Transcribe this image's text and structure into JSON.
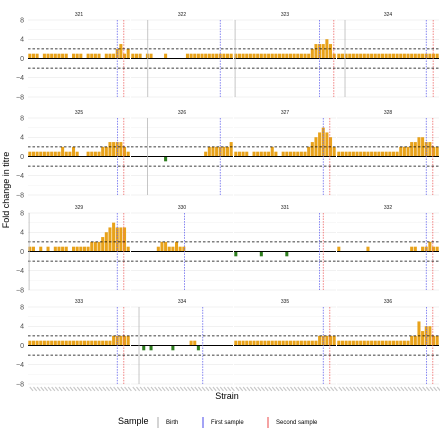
{
  "chart_data": {
    "type": "bar",
    "facet_layout": "4x4",
    "xlabel": "Strain",
    "ylabel": "Fold change in titre",
    "ylim": [
      -8,
      8
    ],
    "yticks": [
      -8,
      -4,
      0,
      4,
      8
    ],
    "threshold_lines": [
      2,
      -2
    ],
    "n_strains": 28,
    "colors": {
      "positive": "#E8A21A",
      "negative": "#2E7D1E"
    },
    "legend": {
      "title": "Sample",
      "placement": "bottom",
      "entries": [
        {
          "label": "Birth",
          "color": "#b8b8b8"
        },
        {
          "label": "First sample",
          "color": "#6666ee"
        },
        {
          "label": "Second sample",
          "color": "#ee6666"
        }
      ]
    },
    "panels": [
      {
        "id": "321",
        "birth": null,
        "first": 24.5,
        "second": 26.3,
        "values": [
          1,
          1,
          1,
          0,
          1,
          1,
          1,
          1,
          1,
          1,
          1,
          0,
          1,
          1,
          1,
          0,
          1,
          1,
          1,
          1,
          0,
          1,
          1,
          1,
          2,
          3,
          1,
          2
        ]
      },
      {
        "id": "322",
        "birth": 4.6,
        "first": 24.5,
        "second": null,
        "values": [
          1,
          1,
          1,
          0,
          1,
          1,
          0,
          0,
          0,
          1,
          0,
          0,
          0,
          0,
          0,
          1,
          1,
          1,
          1,
          1,
          1,
          1,
          1,
          1,
          1,
          1,
          1,
          1
        ]
      },
      {
        "id": "323",
        "birth": 0.3,
        "first": 23.5,
        "second": 27.4,
        "values": [
          1,
          1,
          1,
          1,
          1,
          1,
          1,
          1,
          1,
          1,
          1,
          1,
          1,
          1,
          1,
          1,
          1,
          1,
          1,
          1,
          1,
          2,
          3,
          3,
          3,
          4,
          3,
          1
        ]
      },
      {
        "id": "324",
        "birth": 2.2,
        "first": 24.5,
        "second": 26.4,
        "values": [
          1,
          1,
          1,
          1,
          1,
          1,
          1,
          1,
          1,
          1,
          1,
          1,
          1,
          1,
          1,
          1,
          1,
          1,
          1,
          1,
          1,
          1,
          1,
          1,
          1,
          1,
          1,
          1
        ]
      },
      {
        "id": "325",
        "birth": null,
        "first": 24.6,
        "second": 26.3,
        "values": [
          1,
          1,
          1,
          1,
          1,
          1,
          1,
          1,
          1,
          2,
          1,
          1,
          2,
          1,
          0,
          0,
          1,
          1,
          1,
          1,
          2,
          2,
          3,
          3,
          3,
          3,
          2,
          1
        ]
      },
      {
        "id": "326",
        "birth": 4.5,
        "first": 24.5,
        "second": null,
        "values": [
          0,
          0,
          0,
          0,
          0,
          0,
          0,
          0,
          0,
          -1,
          0,
          0,
          0,
          0,
          0,
          0,
          0,
          0,
          0,
          0,
          1,
          2,
          2,
          2,
          2,
          2,
          2,
          3
        ]
      },
      {
        "id": "327",
        "birth": null,
        "first": 24.5,
        "second": 26.3,
        "values": [
          1,
          1,
          1,
          1,
          0,
          1,
          1,
          1,
          1,
          1,
          2,
          1,
          0,
          1,
          1,
          1,
          1,
          1,
          1,
          1,
          2,
          3,
          4,
          5,
          6,
          5,
          4,
          2
        ]
      },
      {
        "id": "328",
        "birth": null,
        "first": 24.5,
        "second": 26.3,
        "values": [
          1,
          1,
          1,
          1,
          1,
          1,
          1,
          1,
          1,
          1,
          1,
          1,
          1,
          1,
          1,
          1,
          1,
          2,
          2,
          2,
          3,
          3,
          4,
          4,
          3,
          3,
          2,
          2
        ]
      },
      {
        "id": "329",
        "birth": 0.3,
        "first": 24.5,
        "second": 26.3,
        "values": [
          1,
          1,
          0,
          1,
          0,
          1,
          0,
          1,
          1,
          1,
          1,
          0,
          1,
          1,
          1,
          1,
          1,
          2,
          2,
          2,
          3,
          4,
          5,
          6,
          5,
          5,
          5,
          1
        ]
      },
      {
        "id": "330",
        "birth": null,
        "first": 14.7,
        "second": null,
        "values": [
          0,
          0,
          0,
          0,
          0,
          0,
          0,
          1,
          2,
          2,
          1,
          1,
          2,
          1,
          1,
          0,
          0,
          0,
          0,
          0,
          0,
          0,
          0,
          0,
          0,
          0,
          0,
          0
        ]
      },
      {
        "id": "331",
        "birth": null,
        "first": 23.5,
        "second": 24.5,
        "values": [
          -1,
          0,
          0,
          0,
          0,
          0,
          0,
          -1,
          0,
          0,
          0,
          0,
          0,
          0,
          -1,
          0,
          0,
          0,
          0,
          0,
          0,
          0,
          0,
          0,
          0,
          0,
          0,
          0
        ]
      },
      {
        "id": "332",
        "birth": null,
        "first": 24.5,
        "second": 26.3,
        "values": [
          1,
          0,
          0,
          0,
          0,
          0,
          0,
          0,
          1,
          0,
          0,
          0,
          0,
          0,
          0,
          0,
          0,
          0,
          0,
          0,
          1,
          1,
          0,
          1,
          1,
          2,
          1,
          1
        ]
      },
      {
        "id": "333",
        "birth": null,
        "first": 24.5,
        "second": 26.3,
        "values": [
          1,
          1,
          1,
          1,
          1,
          1,
          1,
          1,
          1,
          1,
          1,
          1,
          1,
          1,
          1,
          1,
          1,
          1,
          1,
          1,
          1,
          1,
          1,
          2,
          2,
          2,
          2,
          2
        ]
      },
      {
        "id": "334",
        "birth": 2.2,
        "first": 19.7,
        "second": null,
        "values": [
          0,
          0,
          0,
          -1,
          0,
          -1,
          0,
          0,
          0,
          0,
          0,
          -1,
          0,
          0,
          0,
          0,
          1,
          1,
          -1,
          0,
          0,
          0,
          0,
          0,
          0,
          0,
          0,
          0
        ]
      },
      {
        "id": "335",
        "birth": null,
        "first": 24.5,
        "second": 26.3,
        "values": [
          1,
          1,
          1,
          1,
          1,
          1,
          1,
          1,
          1,
          1,
          1,
          1,
          1,
          1,
          1,
          1,
          1,
          1,
          1,
          1,
          1,
          1,
          1,
          2,
          2,
          2,
          2,
          2
        ]
      },
      {
        "id": "336",
        "birth": null,
        "first": 24.6,
        "second": 26.3,
        "values": [
          1,
          1,
          1,
          1,
          1,
          1,
          1,
          1,
          1,
          1,
          1,
          1,
          1,
          1,
          1,
          1,
          1,
          1,
          1,
          1,
          2,
          2,
          5,
          3,
          4,
          4,
          2,
          2
        ]
      }
    ]
  }
}
